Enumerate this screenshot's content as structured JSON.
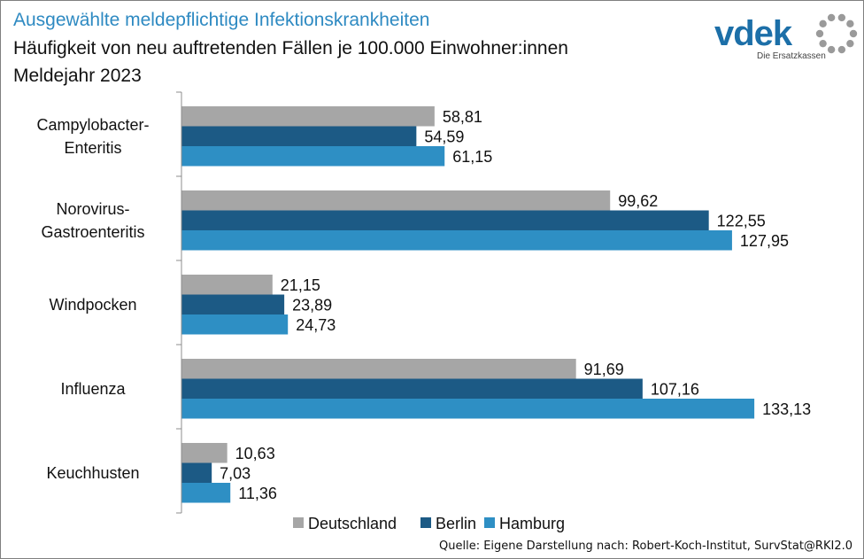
{
  "header": {
    "title": "Ausgewählte meldepflichtige Infektionskrankheiten",
    "subtitle": "Häufigkeit von neu auftretenden Fällen je 100.000 Einwohner:innen",
    "year": "Meldejahr 2023"
  },
  "logo": {
    "wordmark": "vdek",
    "tagline": "Die Ersatzkassen"
  },
  "source": "Quelle: Eigene Darstellung nach: Robert-Koch-Institut, SurvStat@RKI2.0",
  "chart_data": {
    "type": "bar",
    "orientation": "horizontal",
    "categories": [
      [
        "Campylobacter-",
        "Enteritis"
      ],
      [
        "Norovirus-",
        "Gastroenteritis"
      ],
      [
        "Windpocken"
      ],
      [
        "Influenza"
      ],
      [
        "Keuchhusten"
      ]
    ],
    "series": [
      {
        "name": "Deutschland",
        "color": "#a6a6a6",
        "values": [
          58.81,
          99.62,
          21.15,
          91.69,
          10.63
        ],
        "labels": [
          "58,81",
          "99,62",
          "21,15",
          "91,69",
          "10,63"
        ]
      },
      {
        "name": "Berlin",
        "color": "#1c5a85",
        "values": [
          54.59,
          122.55,
          23.89,
          107.16,
          7.03
        ],
        "labels": [
          "54,59",
          "122,55",
          "23,89",
          "107,16",
          "7,03"
        ]
      },
      {
        "name": "Hamburg",
        "color": "#2e8fc4",
        "values": [
          61.15,
          127.95,
          24.73,
          133.13,
          11.36
        ],
        "labels": [
          "61,15",
          "127,95",
          "24,73",
          "133,13",
          "11,36"
        ]
      }
    ],
    "xlim": [
      0,
      140
    ],
    "grid": false,
    "legend_position": "bottom"
  }
}
